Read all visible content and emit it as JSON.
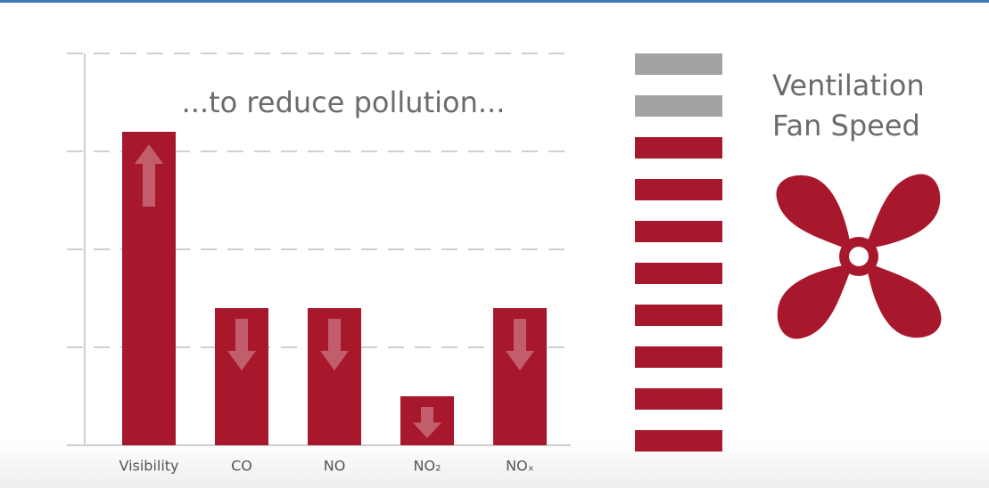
{
  "chart_data": {
    "type": "bar",
    "annotation": "...to reduce pollution...",
    "categories": [
      "Visibility",
      "CO",
      "NO",
      "NO₂",
      "NOₓ"
    ],
    "values": [
      3.2,
      1.4,
      1.4,
      0.5,
      1.4
    ],
    "directions": [
      "up",
      "down",
      "down",
      "down",
      "down"
    ],
    "color": "#a8182c",
    "ylim": [
      0,
      4
    ],
    "yticks": [
      0,
      1,
      2,
      3,
      4
    ],
    "grid": true
  },
  "fan_speed": {
    "title_lines": [
      "Ventilation",
      "Fan Speed"
    ],
    "levels": 10,
    "active": 8,
    "active_color": "#a8182c",
    "inactive_color": "#a3a3a6"
  }
}
